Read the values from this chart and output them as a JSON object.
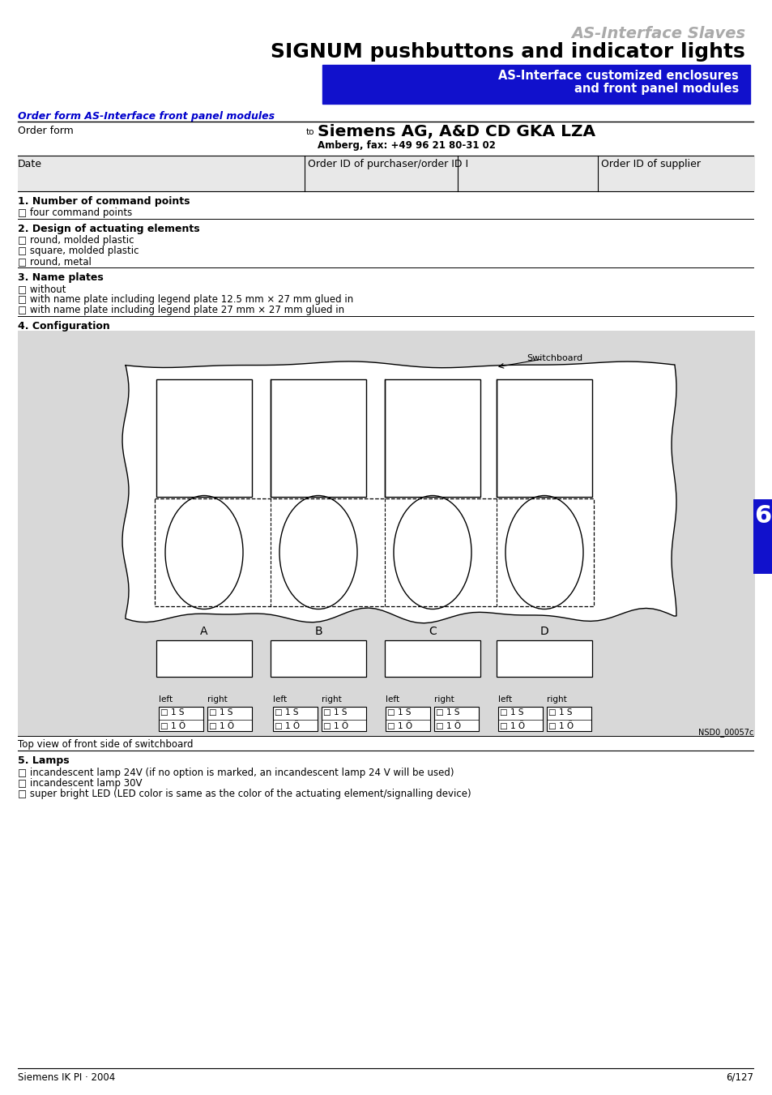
{
  "title_gray": "AS-Interface Slaves",
  "title_black": "SIGNUM pushbuttons and indicator lights",
  "blue_box_text1": "AS-Interface customized enclosures",
  "blue_box_text2": "and front panel modules",
  "section_header": "Order form AS-Interface front panel modules",
  "order_form_label": "Order form",
  "to_text": "to",
  "siemens_bold": "Siemens AG, A&D CD GKA LZA",
  "amberg_text": "Amberg, fax: +49 96 21 80-31 02",
  "date_label": "Date",
  "order_id_purchaser": "Order ID of purchaser/order ID I",
  "order_id_supplier": "Order ID of supplier",
  "section1_title": "1. Number of command points",
  "section1_item1": "□ four command points",
  "section2_title": "2. Design of actuating elements",
  "section2_item1": "□ round, molded plastic",
  "section2_item2": "□ square, molded plastic",
  "section2_item3": "□ round, metal",
  "section3_title": "3. Name plates",
  "section3_item1": "□ without",
  "section3_item2": "□ with name plate including legend plate 12.5 mm × 27 mm glued in",
  "section3_item3": "□ with name plate including legend plate 27 mm × 27 mm glued in",
  "section4_title": "4. Configuration",
  "switchboard_label": "Switchboard",
  "abcd_labels": [
    "A",
    "B",
    "C",
    "D"
  ],
  "checkbox_row1": [
    "□ 1 S",
    "□ 1 S",
    "□ 1 S",
    "□ 1 S",
    "□ 1 S",
    "□ 1 S",
    "□ 1 S",
    "□ 1 S"
  ],
  "checkbox_row2": [
    "□ 1 Ö",
    "□ 1 Ö",
    "□ 1 Ö",
    "□ 1 Ö",
    "□ 1 Ö",
    "□ 1 Ö",
    "□ 1 Ö",
    "□ 1 Ö"
  ],
  "image_code": "NSD0_00057c",
  "top_view_text": "Top view of front side of switchboard",
  "section5_title": "5. Lamps",
  "section5_item1": "□ incandescent lamp 24V (if no option is marked, an incandescent lamp 24 V will be used)",
  "section5_item2": "□ incandescent lamp 30V",
  "section5_item3": "□ super bright LED (LED color is same as the color of the actuating element/signalling device)",
  "footer_left": "Siemens IK PI · 2004",
  "footer_right": "6/127",
  "page_num": "6"
}
